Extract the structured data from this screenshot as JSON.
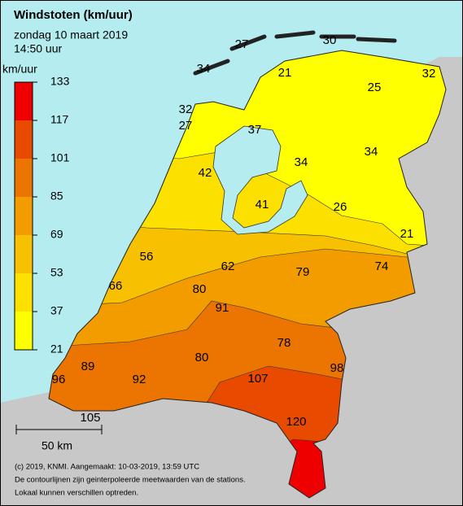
{
  "title": "Windstoten (km/uur)",
  "date": "zondag 10 maart 2019",
  "time": "14:50 uur",
  "legend": {
    "unit": "km/uur",
    "ticks": [
      21,
      37,
      53,
      69,
      85,
      101,
      117,
      133
    ],
    "colors": [
      "#ffff00",
      "#fbe000",
      "#f7c000",
      "#f29c00",
      "#ec7400",
      "#e84a00",
      "#ee0000"
    ]
  },
  "station_values": [
    27,
    30,
    34,
    21,
    32,
    25,
    32,
    27,
    37,
    34,
    34,
    42,
    41,
    26,
    21,
    56,
    62,
    79,
    74,
    66,
    80,
    91,
    78,
    80,
    98,
    89,
    96,
    92,
    107,
    105,
    120
  ],
  "scale_bar": "50 km",
  "footer": [
    "(c) 2019, KNMI. Aangemaakt: 10-03-2019, 13:59 UTC",
    "De contourlijnen zijn geinterpoleerde meetwaarden van de stations.",
    "Lokaal kunnen verschillen optreden."
  ]
}
